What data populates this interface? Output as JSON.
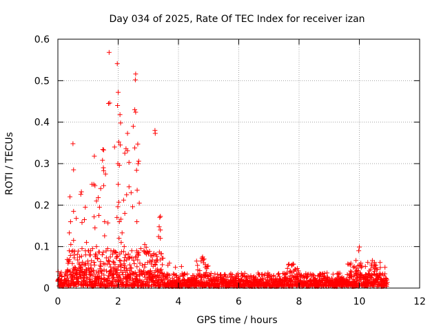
{
  "chart_data": {
    "type": "scatter",
    "title": "Day 034 of 2025, Rate Of TEC Index for receiver izan",
    "xlabel": "GPS time / hours",
    "ylabel": "ROTI / TECUs",
    "xlim": [
      0,
      12
    ],
    "ylim": [
      0,
      0.6
    ],
    "x_ticks": [
      "0",
      "2",
      "4",
      "6",
      "8",
      "10",
      "12"
    ],
    "y_ticks": [
      "0",
      "0.1",
      "0.2",
      "0.3",
      "0.4",
      "0.5",
      "0.6"
    ],
    "grid": true,
    "marker": "+",
    "color": "#ff0000",
    "series": [
      {
        "name": "ROTI",
        "points": [
          [
            1.7,
            0.568
          ],
          [
            1.97,
            0.541
          ],
          [
            2.58,
            0.516
          ],
          [
            2.57,
            0.502
          ],
          [
            2.0,
            0.472
          ],
          [
            1.72,
            0.446
          ],
          [
            1.68,
            0.445
          ],
          [
            1.98,
            0.44
          ],
          [
            2.55,
            0.43
          ],
          [
            2.58,
            0.424
          ],
          [
            2.06,
            0.418
          ],
          [
            2.08,
            0.398
          ],
          [
            2.5,
            0.39
          ],
          [
            3.22,
            0.38
          ],
          [
            3.23,
            0.373
          ],
          [
            2.31,
            0.373
          ],
          [
            0.5,
            0.348
          ],
          [
            1.88,
            0.34
          ],
          [
            2.02,
            0.352
          ],
          [
            2.07,
            0.345
          ],
          [
            2.26,
            0.336
          ],
          [
            2.55,
            0.338
          ],
          [
            2.65,
            0.347
          ],
          [
            1.49,
            0.334
          ],
          [
            1.52,
            0.333
          ],
          [
            2.31,
            0.331
          ],
          [
            2.22,
            0.325
          ],
          [
            1.21,
            0.318
          ],
          [
            1.99,
            0.3
          ],
          [
            2.04,
            0.296
          ],
          [
            2.36,
            0.303
          ],
          [
            2.68,
            0.306
          ],
          [
            2.66,
            0.3
          ],
          [
            1.48,
            0.308
          ],
          [
            1.51,
            0.29
          ],
          [
            1.13,
            0.25
          ],
          [
            1.52,
            0.283
          ],
          [
            0.52,
            0.285
          ],
          [
            2.61,
            0.284
          ],
          [
            1.58,
            0.275
          ],
          [
            2.0,
            0.25
          ],
          [
            2.36,
            0.244
          ],
          [
            2.63,
            0.236
          ],
          [
            1.19,
            0.25
          ],
          [
            1.23,
            0.247
          ],
          [
            1.42,
            0.24
          ],
          [
            1.52,
            0.247
          ],
          [
            0.78,
            0.232
          ],
          [
            0.76,
            0.226
          ],
          [
            2.28,
            0.225
          ],
          [
            2.43,
            0.23
          ],
          [
            0.4,
            0.22
          ],
          [
            1.34,
            0.218
          ],
          [
            1.28,
            0.21
          ],
          [
            2.18,
            0.212
          ],
          [
            2.02,
            0.207
          ],
          [
            2.7,
            0.205
          ],
          [
            2.48,
            0.196
          ],
          [
            1.99,
            0.196
          ],
          [
            0.91,
            0.195
          ],
          [
            1.38,
            0.195
          ],
          [
            2.22,
            0.18
          ],
          [
            0.52,
            0.185
          ],
          [
            1.2,
            0.172
          ],
          [
            1.36,
            0.175
          ],
          [
            3.4,
            0.173
          ],
          [
            3.38,
            0.17
          ],
          [
            1.96,
            0.17
          ],
          [
            2.09,
            0.166
          ],
          [
            0.88,
            0.165
          ],
          [
            0.61,
            0.168
          ],
          [
            0.42,
            0.16
          ],
          [
            0.8,
            0.158
          ],
          [
            2.62,
            0.16
          ],
          [
            1.55,
            0.16
          ],
          [
            2.04,
            0.16
          ],
          [
            1.66,
            0.157
          ],
          [
            3.36,
            0.148
          ],
          [
            3.4,
            0.14
          ],
          [
            1.23,
            0.145
          ],
          [
            0.38,
            0.133
          ],
          [
            2.13,
            0.133
          ],
          [
            1.55,
            0.126
          ],
          [
            3.34,
            0.124
          ],
          [
            3.4,
            0.12
          ],
          [
            0.52,
            0.115
          ],
          [
            0.43,
            0.105
          ],
          [
            0.95,
            0.11
          ],
          [
            1.15,
            0.095
          ],
          [
            1.65,
            0.095
          ],
          [
            2.03,
            0.12
          ],
          [
            2.1,
            0.11
          ],
          [
            2.2,
            0.1
          ],
          [
            2.88,
            0.105
          ],
          [
            2.93,
            0.098
          ],
          [
            1.28,
            0.1
          ],
          [
            0.8,
            0.095
          ],
          [
            0.5,
            0.09
          ],
          [
            2.45,
            0.09
          ],
          [
            2.75,
            0.095
          ],
          [
            2.9,
            0.085
          ],
          [
            2.25,
            0.08
          ],
          [
            1.05,
            0.08
          ],
          [
            0.92,
            0.08
          ],
          [
            2.63,
            0.085
          ],
          [
            2.57,
            0.075
          ],
          [
            1.74,
            0.075
          ],
          [
            1.94,
            0.072
          ],
          [
            3.05,
            0.065
          ],
          [
            2.28,
            0.068
          ],
          [
            0.35,
            0.066
          ],
          [
            0.65,
            0.068
          ],
          [
            0.99,
            0.065
          ],
          [
            2.98,
            0.062
          ],
          [
            1.2,
            0.062
          ],
          [
            3.7,
            0.06
          ],
          [
            3.65,
            0.055
          ],
          [
            4.8,
            0.075
          ],
          [
            4.78,
            0.072
          ],
          [
            4.82,
            0.068
          ],
          [
            4.75,
            0.065
          ],
          [
            4.85,
            0.07
          ],
          [
            7.8,
            0.058
          ],
          [
            7.75,
            0.055
          ],
          [
            10.0,
            0.099
          ],
          [
            9.98,
            0.09
          ],
          [
            10.05,
            0.06
          ],
          [
            10.5,
            0.062
          ],
          [
            10.4,
            0.058
          ],
          [
            10.85,
            0.05
          ],
          [
            10.2,
            0.052
          ],
          [
            9.8,
            0.05
          ],
          [
            9.9,
            0.048
          ],
          [
            10.6,
            0.045
          ],
          [
            0.7,
            0.06
          ],
          [
            1.4,
            0.055
          ],
          [
            2.8,
            0.055
          ],
          [
            3.1,
            0.058
          ],
          [
            3.9,
            0.05
          ],
          [
            4.1,
            0.052
          ],
          [
            1.85,
            0.048
          ],
          [
            0.55,
            0.05
          ]
        ]
      }
    ]
  }
}
